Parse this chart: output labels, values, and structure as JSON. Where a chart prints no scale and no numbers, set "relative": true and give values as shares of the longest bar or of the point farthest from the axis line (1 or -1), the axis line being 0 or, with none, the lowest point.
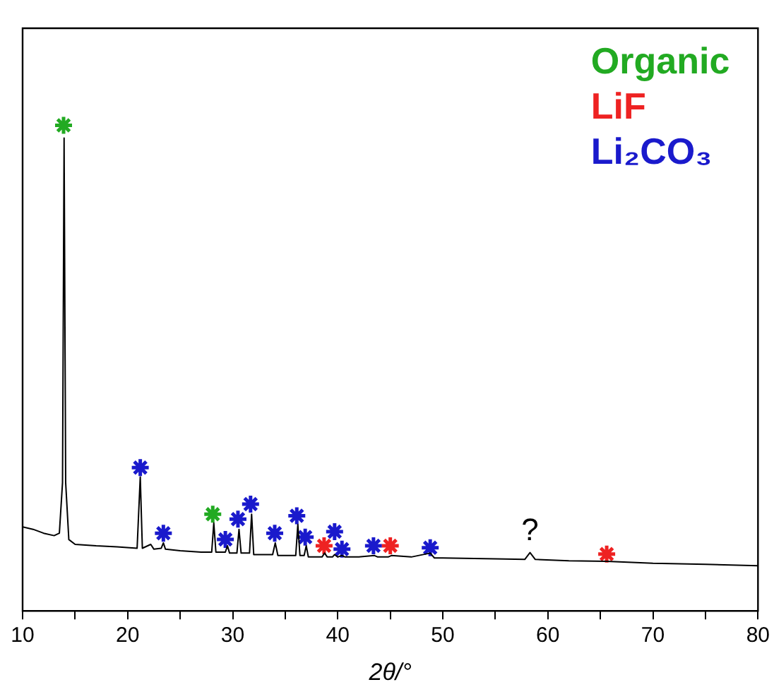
{
  "chart_data": {
    "type": "line",
    "relative": true,
    "xlabel": "2θ/°",
    "xlim": [
      10,
      80
    ],
    "xticks": [
      10,
      {
        "value": 15,
        "label": null
      },
      20,
      {
        "value": 25,
        "label": null
      },
      30,
      {
        "value": 35,
        "label": null
      },
      40,
      {
        "value": 45,
        "label": null
      },
      50,
      {
        "value": 55,
        "label": null
      },
      60,
      {
        "value": 65,
        "label": null
      },
      70,
      {
        "value": 75,
        "label": null
      },
      80
    ],
    "grid": false,
    "tick_labels": "x",
    "legend": "top right",
    "line_style": "solid",
    "series": [
      {
        "type": "line",
        "color": "#000000",
        "marker": "none",
        "x": [
          10,
          11,
          12,
          13,
          13.5,
          13.8,
          13.95,
          14.1,
          14.4,
          15,
          17,
          19,
          20.9,
          21.2,
          21.4,
          22.2,
          22.5,
          23.2,
          23.4,
          23.6,
          25,
          27,
          28.0,
          28.2,
          28.4,
          29.3,
          29.5,
          29.7,
          30.4,
          30.6,
          30.8,
          31.6,
          31.8,
          32,
          33.8,
          34.05,
          34.3,
          36.0,
          36.2,
          36.4,
          36.8,
          37.0,
          37.2,
          38.5,
          38.75,
          39.0,
          39.5,
          39.7,
          40.0,
          40.4,
          40.7,
          42,
          43.5,
          43.8,
          44.8,
          45.1,
          47,
          48.8,
          49.2,
          50,
          55,
          57.8,
          58.3,
          58.8,
          62,
          65.6,
          70,
          75,
          80
        ],
        "values": [
          0.173,
          0.168,
          0.16,
          0.155,
          0.16,
          0.264,
          0.974,
          0.264,
          0.147,
          0.137,
          0.134,
          0.132,
          0.129,
          0.276,
          0.129,
          0.137,
          0.127,
          0.129,
          0.14,
          0.127,
          0.124,
          0.121,
          0.121,
          0.181,
          0.121,
          0.121,
          0.134,
          0.119,
          0.119,
          0.168,
          0.119,
          0.119,
          0.199,
          0.116,
          0.116,
          0.14,
          0.114,
          0.114,
          0.178,
          0.114,
          0.114,
          0.134,
          0.111,
          0.111,
          0.119,
          0.111,
          0.111,
          0.116,
          0.111,
          0.114,
          0.111,
          0.111,
          0.114,
          0.111,
          0.111,
          0.114,
          0.111,
          0.119,
          0.109,
          0.109,
          0.107,
          0.106,
          0.12,
          0.106,
          0.103,
          0.102,
          0.098,
          0.096,
          0.093
        ]
      },
      {
        "type": "scatter",
        "name": "Organic",
        "color": "#22aa22",
        "marker": "cross",
        "x": [
          13.9,
          28.1
        ],
        "values": [
          1.0,
          0.199
        ]
      },
      {
        "type": "scatter",
        "name": "LiF",
        "color": "#ee2222",
        "marker": "cross",
        "x": [
          38.7,
          45.0,
          65.6
        ],
        "values": [
          0.134,
          0.134,
          0.117
        ]
      },
      {
        "type": "scatter",
        "name": "Li₂CO₃",
        "color": "#1a1acc",
        "marker": "cross",
        "x": [
          21.2,
          23.4,
          29.3,
          30.5,
          31.7,
          34.0,
          36.1,
          36.9,
          39.7,
          40.4,
          43.4,
          48.8
        ],
        "values": [
          0.295,
          0.16,
          0.147,
          0.189,
          0.22,
          0.16,
          0.196,
          0.152,
          0.163,
          0.127,
          0.134,
          0.13
        ]
      }
    ],
    "annotations": [
      {
        "text": "?",
        "x": 58.3,
        "y": 0.12
      }
    ]
  }
}
